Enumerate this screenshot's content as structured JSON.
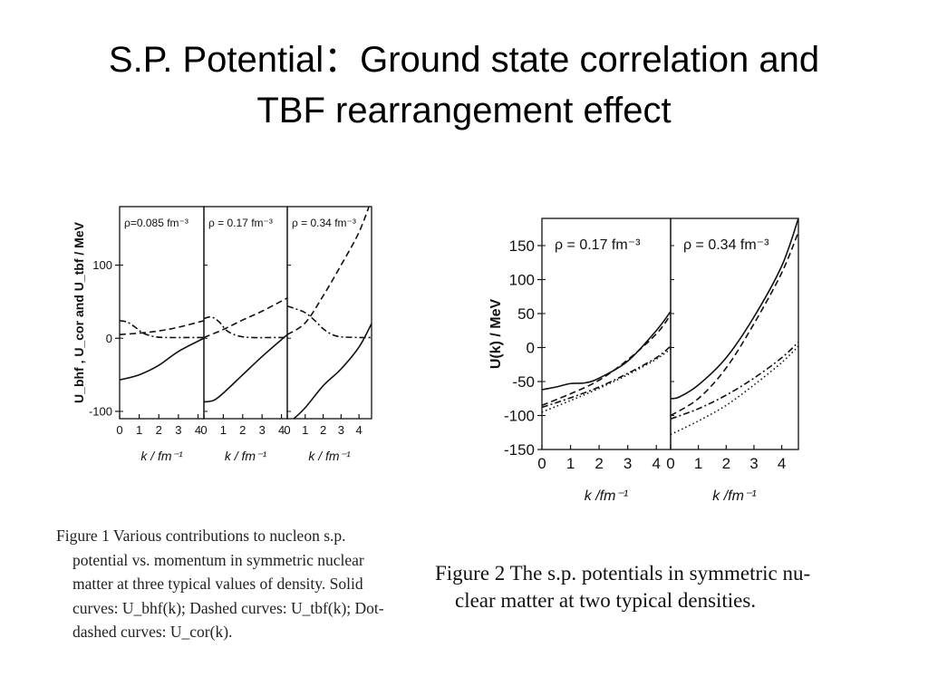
{
  "slide": {
    "title_line1": "S.P. Potential：Ground state correlation and",
    "title_line2": "TBF rearrangement effect"
  },
  "figure1": {
    "caption_lines": [
      "Figure 1   Various contributions to nucleon s.p.",
      "potential vs. momentum in symmetric nuclear",
      "matter at three typical values of density. Solid",
      "curves: U_bhf(k); Dashed curves: U_tbf(k); Dot-",
      "dashed curves: U_cor(k)."
    ]
  },
  "figure2": {
    "caption_lines": [
      "Figure 2   The s.p. potentials in symmetric nu-",
      "clear matter at two typical densities."
    ]
  },
  "chart_data": [
    {
      "type": "line",
      "figure": "Figure 1",
      "ylabel": "U_bhf , U_cor and U_tbf / MeV",
      "xlabel": "k / fm⁻¹",
      "ylim": [
        -110,
        180
      ],
      "yticks": [
        100,
        0,
        -100
      ],
      "xticks": [
        0,
        1,
        2,
        3,
        4
      ],
      "panels": [
        {
          "label": "ρ=0.085 fm⁻³",
          "xlim": [
            0,
            4.3
          ],
          "series": [
            {
              "name": "U_bhf",
              "style": "solid",
              "x": [
                0,
                1,
                2,
                3,
                4.3
              ],
              "y": [
                -57,
                -50,
                -37,
                -18,
                0
              ]
            },
            {
              "name": "U_tbf",
              "style": "dashed",
              "x": [
                0,
                1,
                2,
                3,
                4.3
              ],
              "y": [
                5,
                7,
                10,
                15,
                24
              ]
            },
            {
              "name": "U_cor",
              "style": "dashdot",
              "x": [
                0,
                0.4,
                0.8,
                1.2,
                1.8,
                2.5,
                3.5,
                4.3
              ],
              "y": [
                24,
                22,
                15,
                7,
                2,
                1,
                1,
                1
              ]
            }
          ]
        },
        {
          "label": "ρ = 0.17 fm⁻³",
          "xlim": [
            0,
            4.3
          ],
          "series": [
            {
              "name": "U_bhf",
              "style": "solid",
              "x": [
                0,
                0.5,
                1,
                2,
                3,
                4.3
              ],
              "y": [
                -87,
                -85,
                -75,
                -50,
                -25,
                5
              ]
            },
            {
              "name": "U_tbf",
              "style": "dashed",
              "x": [
                0,
                1,
                2,
                3,
                4.3
              ],
              "y": [
                1,
                12,
                25,
                37,
                55
              ]
            },
            {
              "name": "U_cor",
              "style": "dashdot",
              "x": [
                0,
                0.4,
                0.8,
                1.2,
                1.8,
                2.5,
                3.5,
                4.3
              ],
              "y": [
                27,
                29,
                22,
                10,
                3,
                1,
                1,
                1
              ]
            }
          ]
        },
        {
          "label": "ρ = 0.34 fm⁻³",
          "xlim": [
            0,
            4.7
          ],
          "series": [
            {
              "name": "U_bhf",
              "style": "solid",
              "x": [
                0,
                0.3,
                1,
                2,
                3,
                4,
                4.7
              ],
              "y": [
                -113,
                -111,
                -95,
                -65,
                -42,
                -12,
                20
              ]
            },
            {
              "name": "U_tbf",
              "style": "dashed",
              "x": [
                0,
                1,
                2,
                3,
                4,
                4.7
              ],
              "y": [
                5,
                21,
                58,
                100,
                145,
                190
              ]
            },
            {
              "name": "U_cor",
              "style": "dashdot",
              "x": [
                0,
                0.5,
                1,
                1.5,
                2,
                2.5,
                3,
                4,
                4.7
              ],
              "y": [
                44,
                40,
                35,
                25,
                13,
                5,
                2,
                1,
                1
              ]
            }
          ]
        }
      ]
    },
    {
      "type": "line",
      "figure": "Figure 2",
      "ylabel": "U(k) / MeV",
      "xlabel": "k /fm⁻¹",
      "ylim": [
        -150,
        190
      ],
      "yticks": [
        150,
        100,
        50,
        0,
        -50,
        -100,
        -150
      ],
      "xticks": [
        0,
        1,
        2,
        3,
        4
      ],
      "panels": [
        {
          "label": "ρ = 0.17 fm⁻³",
          "xlim": [
            0,
            4.5
          ],
          "series": [
            {
              "style": "solid",
              "x": [
                0,
                0.5,
                1,
                1.5,
                2,
                3,
                4,
                4.5
              ],
              "y": [
                -62,
                -58,
                -53,
                -52,
                -45,
                -20,
                25,
                53
              ]
            },
            {
              "style": "dashed",
              "x": [
                0,
                1,
                2,
                3,
                4,
                4.5
              ],
              "y": [
                -85,
                -68,
                -48,
                -18,
                20,
                48
              ]
            },
            {
              "style": "dashdot",
              "x": [
                0,
                1,
                2,
                3,
                4,
                4.5
              ],
              "y": [
                -88,
                -74,
                -58,
                -38,
                -15,
                2
              ]
            },
            {
              "style": "dotted",
              "x": [
                0,
                1,
                2,
                3,
                4,
                4.5
              ],
              "y": [
                -95,
                -78,
                -60,
                -40,
                -17,
                -2
              ]
            }
          ]
        },
        {
          "label": "ρ = 0.34 fm⁻³",
          "xlim": [
            0,
            4.6
          ],
          "series": [
            {
              "style": "solid",
              "x": [
                0,
                0.3,
                1,
                2,
                3,
                4,
                4.6
              ],
              "y": [
                -75,
                -73,
                -55,
                -15,
                45,
                120,
                190
              ]
            },
            {
              "style": "dashed",
              "x": [
                0,
                1,
                2,
                3,
                4,
                4.6
              ],
              "y": [
                -100,
                -75,
                -30,
                35,
                110,
                170
              ]
            },
            {
              "style": "dashdot",
              "x": [
                0,
                1,
                2,
                3,
                4,
                4.6
              ],
              "y": [
                -105,
                -90,
                -70,
                -45,
                -15,
                8
              ]
            },
            {
              "style": "dotted",
              "x": [
                0,
                1,
                2,
                3,
                4,
                4.6
              ],
              "y": [
                -128,
                -108,
                -85,
                -55,
                -22,
                2
              ]
            }
          ]
        }
      ]
    }
  ]
}
